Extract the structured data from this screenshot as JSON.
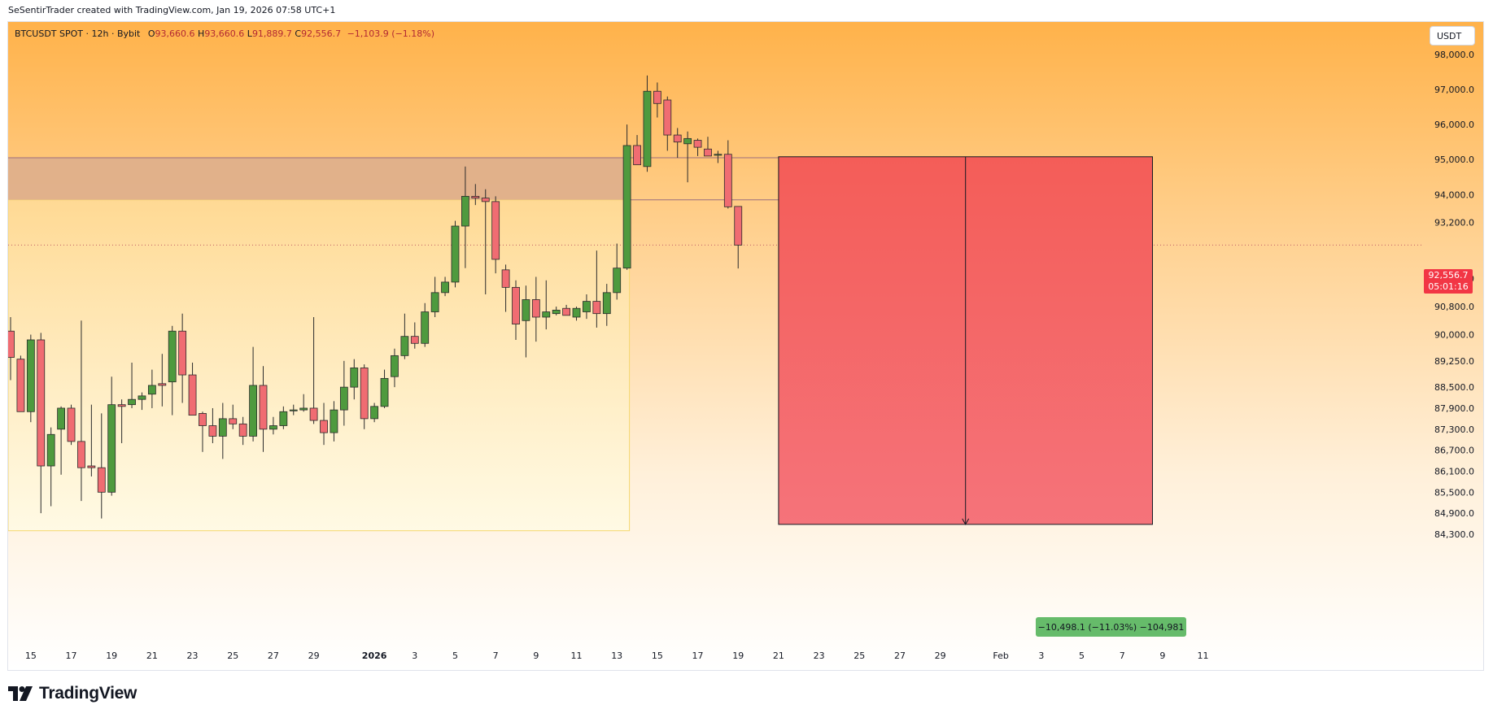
{
  "attribution": "SeSentirTrader created with TradingView.com, Jan 19, 2026 07:58 UTC+1",
  "legend": {
    "symbol": "BTCUSDT SPOT · 12h · Bybit",
    "open_label": "O",
    "open": "93,660.6",
    "high_label": "H",
    "high": "93,660.6",
    "low_label": "L",
    "low": "91,889.7",
    "close_label": "C",
    "close": "92,556.7",
    "change": "−1,103.9 (−1.18%)"
  },
  "currency": "USDT",
  "last_price": {
    "price": "92,556.7",
    "countdown": "05:01:16"
  },
  "measure_label": "−10,498.1 (−11.03%) −104,981",
  "brand": "TradingView",
  "colors": {
    "up": "#4e9a3e",
    "down": "#f06c72",
    "measure": "#f25a5a",
    "zone": "#deae8c"
  },
  "chart_data": {
    "type": "candlestick",
    "y_ticks": [
      {
        "v": 98000,
        "label": "98,000.0"
      },
      {
        "v": 97000,
        "label": "97,000.0"
      },
      {
        "v": 96000,
        "label": "96,000.0"
      },
      {
        "v": 95000,
        "label": "95,000.0"
      },
      {
        "v": 94000,
        "label": "94,000.0"
      },
      {
        "v": 93200,
        "label": "93,200.0"
      },
      {
        "v": 91600,
        "label": "91,600.0"
      },
      {
        "v": 90800,
        "label": "90,800.0"
      },
      {
        "v": 90000,
        "label": "90,000.0"
      },
      {
        "v": 89250,
        "label": "89,250.0"
      },
      {
        "v": 88500,
        "label": "88,500.0"
      },
      {
        "v": 87900,
        "label": "87,900.0"
      },
      {
        "v": 87300,
        "label": "87,300.0"
      },
      {
        "v": 86700,
        "label": "86,700.0"
      },
      {
        "v": 86100,
        "label": "86,100.0"
      },
      {
        "v": 85500,
        "label": "85,500.0"
      },
      {
        "v": 84900,
        "label": "84,900.0"
      },
      {
        "v": 84300,
        "label": "84,300.0"
      }
    ],
    "x_ticks": [
      {
        "i": 2,
        "label": "15"
      },
      {
        "i": 6,
        "label": "17"
      },
      {
        "i": 10,
        "label": "19"
      },
      {
        "i": 14,
        "label": "21"
      },
      {
        "i": 18,
        "label": "23"
      },
      {
        "i": 22,
        "label": "25"
      },
      {
        "i": 26,
        "label": "27"
      },
      {
        "i": 30,
        "label": "29"
      },
      {
        "i": 36,
        "label": "2026",
        "bold": true
      },
      {
        "i": 40,
        "label": "3"
      },
      {
        "i": 44,
        "label": "5"
      },
      {
        "i": 48,
        "label": "7"
      },
      {
        "i": 52,
        "label": "9"
      },
      {
        "i": 56,
        "label": "11"
      },
      {
        "i": 60,
        "label": "13"
      },
      {
        "i": 64,
        "label": "15"
      },
      {
        "i": 68,
        "label": "17"
      },
      {
        "i": 72,
        "label": "19"
      },
      {
        "i": 76,
        "label": "21"
      },
      {
        "i": 80,
        "label": "23"
      },
      {
        "i": 84,
        "label": "25"
      },
      {
        "i": 88,
        "label": "27"
      },
      {
        "i": 92,
        "label": "29"
      },
      {
        "i": 98,
        "label": "Feb"
      },
      {
        "i": 102,
        "label": "3"
      },
      {
        "i": 106,
        "label": "5"
      },
      {
        "i": 110,
        "label": "7"
      },
      {
        "i": 114,
        "label": "9"
      },
      {
        "i": 118,
        "label": "11"
      }
    ],
    "candles": [
      {
        "o": 90100,
        "h": 90500,
        "l": 88700,
        "c": 89350
      },
      {
        "o": 89300,
        "h": 89400,
        "l": 87900,
        "c": 87800
      },
      {
        "o": 87800,
        "h": 90000,
        "l": 87500,
        "c": 89850
      },
      {
        "o": 89850,
        "h": 90050,
        "l": 84900,
        "c": 86250
      },
      {
        "o": 86250,
        "h": 87350,
        "l": 85100,
        "c": 87150
      },
      {
        "o": 87300,
        "h": 87950,
        "l": 86000,
        "c": 87900
      },
      {
        "o": 87900,
        "h": 88000,
        "l": 86850,
        "c": 86950
      },
      {
        "o": 86950,
        "h": 90400,
        "l": 85250,
        "c": 86200
      },
      {
        "o": 86250,
        "h": 88000,
        "l": 85950,
        "c": 86200
      },
      {
        "o": 86200,
        "h": 87750,
        "l": 84750,
        "c": 85500
      },
      {
        "o": 85500,
        "h": 88800,
        "l": 85400,
        "c": 88000
      },
      {
        "o": 88000,
        "h": 88150,
        "l": 86900,
        "c": 87950
      },
      {
        "o": 88000,
        "h": 89200,
        "l": 87900,
        "c": 88150
      },
      {
        "o": 88150,
        "h": 88350,
        "l": 87850,
        "c": 88250
      },
      {
        "o": 88300,
        "h": 89000,
        "l": 87900,
        "c": 88550
      },
      {
        "o": 88600,
        "h": 89450,
        "l": 87950,
        "c": 88550
      },
      {
        "o": 88650,
        "h": 90250,
        "l": 87700,
        "c": 90100
      },
      {
        "o": 90100,
        "h": 90600,
        "l": 88050,
        "c": 88850
      },
      {
        "o": 88850,
        "h": 89200,
        "l": 87700,
        "c": 87700
      },
      {
        "o": 87750,
        "h": 87800,
        "l": 86650,
        "c": 87400
      },
      {
        "o": 87400,
        "h": 87900,
        "l": 86900,
        "c": 87100
      },
      {
        "o": 87100,
        "h": 88050,
        "l": 86450,
        "c": 87600
      },
      {
        "o": 87600,
        "h": 88000,
        "l": 87300,
        "c": 87450
      },
      {
        "o": 87450,
        "h": 87650,
        "l": 86850,
        "c": 87100
      },
      {
        "o": 87100,
        "h": 89650,
        "l": 86950,
        "c": 88550
      },
      {
        "o": 88550,
        "h": 89100,
        "l": 86650,
        "c": 87300
      },
      {
        "o": 87300,
        "h": 87650,
        "l": 87150,
        "c": 87400
      },
      {
        "o": 87400,
        "h": 87950,
        "l": 87300,
        "c": 87800
      },
      {
        "o": 87850,
        "h": 88000,
        "l": 87700,
        "c": 87850
      },
      {
        "o": 87850,
        "h": 88300,
        "l": 87800,
        "c": 87900
      },
      {
        "o": 87900,
        "h": 90500,
        "l": 87450,
        "c": 87550
      },
      {
        "o": 87550,
        "h": 88050,
        "l": 86850,
        "c": 87200
      },
      {
        "o": 87200,
        "h": 88100,
        "l": 86950,
        "c": 87850
      },
      {
        "o": 87850,
        "h": 89250,
        "l": 87400,
        "c": 88500
      },
      {
        "o": 88500,
        "h": 89300,
        "l": 88150,
        "c": 89050
      },
      {
        "o": 89050,
        "h": 89150,
        "l": 87300,
        "c": 87600
      },
      {
        "o": 87600,
        "h": 88050,
        "l": 87500,
        "c": 87950
      },
      {
        "o": 87950,
        "h": 89000,
        "l": 87900,
        "c": 88750
      },
      {
        "o": 88800,
        "h": 89600,
        "l": 88500,
        "c": 89400
      },
      {
        "o": 89400,
        "h": 90600,
        "l": 89300,
        "c": 89950
      },
      {
        "o": 89950,
        "h": 90350,
        "l": 89600,
        "c": 89750
      },
      {
        "o": 89750,
        "h": 90900,
        "l": 89650,
        "c": 90650
      },
      {
        "o": 90650,
        "h": 91650,
        "l": 90500,
        "c": 91200
      },
      {
        "o": 91200,
        "h": 91650,
        "l": 91100,
        "c": 91500
      },
      {
        "o": 91500,
        "h": 93250,
        "l": 91350,
        "c": 93100
      },
      {
        "o": 93100,
        "h": 94800,
        "l": 91900,
        "c": 93950
      },
      {
        "o": 93950,
        "h": 94300,
        "l": 93700,
        "c": 93900
      },
      {
        "o": 93900,
        "h": 94150,
        "l": 91150,
        "c": 93800
      },
      {
        "o": 93800,
        "h": 93950,
        "l": 91750,
        "c": 92150
      },
      {
        "o": 91850,
        "h": 92000,
        "l": 90650,
        "c": 91350
      },
      {
        "o": 91350,
        "h": 91550,
        "l": 89850,
        "c": 90300
      },
      {
        "o": 90400,
        "h": 91400,
        "l": 89350,
        "c": 91000
      },
      {
        "o": 91000,
        "h": 91650,
        "l": 89800,
        "c": 90500
      },
      {
        "o": 90500,
        "h": 91550,
        "l": 90150,
        "c": 90650
      },
      {
        "o": 90600,
        "h": 90800,
        "l": 90550,
        "c": 90700
      },
      {
        "o": 90750,
        "h": 90850,
        "l": 90550,
        "c": 90550
      },
      {
        "o": 90500,
        "h": 90800,
        "l": 90400,
        "c": 90750
      },
      {
        "o": 90650,
        "h": 91150,
        "l": 90450,
        "c": 90950
      },
      {
        "o": 90950,
        "h": 92400,
        "l": 90200,
        "c": 90600
      },
      {
        "o": 90600,
        "h": 91450,
        "l": 90250,
        "c": 91200
      },
      {
        "o": 91200,
        "h": 92600,
        "l": 91000,
        "c": 91900
      },
      {
        "o": 91900,
        "h": 96000,
        "l": 91850,
        "c": 95400
      },
      {
        "o": 95400,
        "h": 95700,
        "l": 94850,
        "c": 94850
      },
      {
        "o": 94800,
        "h": 97400,
        "l": 94650,
        "c": 96950
      },
      {
        "o": 96950,
        "h": 97200,
        "l": 96200,
        "c": 96600
      },
      {
        "o": 96700,
        "h": 96800,
        "l": 95250,
        "c": 95700
      },
      {
        "o": 95700,
        "h": 95900,
        "l": 95050,
        "c": 95500
      },
      {
        "o": 95450,
        "h": 95800,
        "l": 94350,
        "c": 95600
      },
      {
        "o": 95550,
        "h": 95600,
        "l": 95100,
        "c": 95350
      },
      {
        "o": 95300,
        "h": 95650,
        "l": 95100,
        "c": 95100
      },
      {
        "o": 95150,
        "h": 95250,
        "l": 94900,
        "c": 95150
      },
      {
        "o": 95150,
        "h": 95550,
        "l": 93600,
        "c": 93650
      },
      {
        "o": 93660.6,
        "h": 93660.6,
        "l": 91889.7,
        "c": 92556.7
      }
    ],
    "resistance_zone": {
      "top": 95050,
      "bottom": 93850
    },
    "shaded_range": {
      "from_index": 0,
      "to_index": 61,
      "low": 84400
    },
    "short_measure": {
      "from_index": 76,
      "to_index": 113,
      "top": 95079,
      "bottom": 84581
    },
    "current_price": 92556.7
  }
}
